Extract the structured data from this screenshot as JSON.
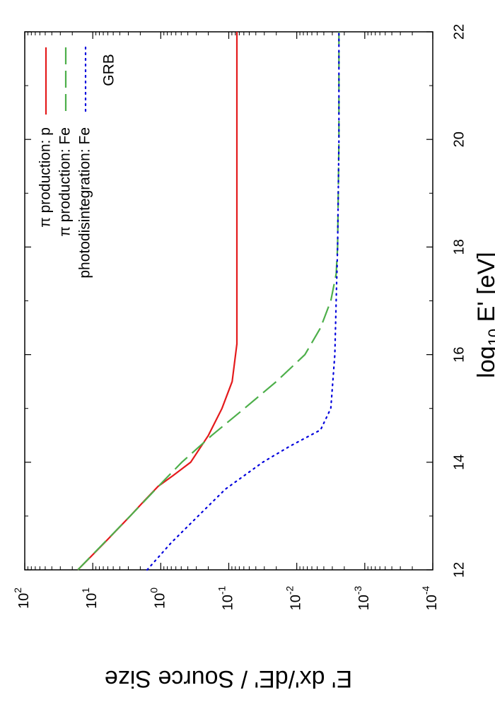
{
  "chart_data": {
    "type": "line",
    "title": "GRB",
    "xlabel_main": "log",
    "xlabel_sub": "10",
    "xlabel_rest": " E' [eV]",
    "ylabel": "E' dx'/dE' / Source Size",
    "xlim": [
      12,
      22
    ],
    "ylim_exponent": [
      -4,
      2
    ],
    "y_log_scale": true,
    "orientation": "rotated 90° clockwise",
    "x_ticks": [
      "12",
      "14",
      "16",
      "18",
      "20",
      "22"
    ],
    "y_ticks": [
      {
        "base": "10",
        "exp": "2",
        "value": 2
      },
      {
        "base": "10",
        "exp": "1",
        "value": 1
      },
      {
        "base": "10",
        "exp": "0",
        "value": 0
      },
      {
        "base": "10",
        "exp": "-1",
        "value": -1
      },
      {
        "base": "10",
        "exp": "-2",
        "value": -2
      },
      {
        "base": "10",
        "exp": "-3",
        "value": -3
      },
      {
        "base": "10",
        "exp": "-4",
        "value": -4
      }
    ],
    "legend_position": "top-right",
    "series": [
      {
        "name": "π production: p",
        "color": "#e41a1c",
        "style": "solid",
        "x": [
          12.0,
          12.5,
          13.0,
          13.3,
          13.55,
          13.75,
          14.0,
          14.5,
          15.0,
          15.5,
          16.0,
          16.2,
          18.0,
          20.0,
          22.0
        ],
        "y": [
          1.22,
          0.83,
          0.45,
          0.23,
          0.04,
          -0.18,
          -0.44,
          -0.7,
          -0.9,
          -1.05,
          -1.1,
          -1.12,
          -1.12,
          -1.12,
          -1.12
        ]
      },
      {
        "name": "π production: Fe",
        "color": "#4daf4a",
        "style": "dashed",
        "x": [
          12.0,
          13.0,
          13.65,
          14.0,
          14.5,
          15.0,
          15.5,
          16.0,
          16.5,
          17.0,
          17.5,
          18.0,
          20.0,
          22.0
        ],
        "y": [
          1.22,
          0.45,
          -0.04,
          -0.31,
          -0.75,
          -1.23,
          -1.7,
          -2.12,
          -2.35,
          -2.5,
          -2.58,
          -2.6,
          -2.62,
          -2.62
        ]
      },
      {
        "name": "photodisintegration: Fe",
        "color": "#0000dd",
        "style": "dotted",
        "x": [
          12.0,
          12.5,
          13.0,
          13.5,
          14.0,
          14.3,
          14.6,
          15.0,
          16.0,
          17.0,
          18.0,
          20.0,
          22.0
        ],
        "y": [
          0.2,
          -0.15,
          -0.55,
          -0.95,
          -1.5,
          -1.9,
          -2.35,
          -2.5,
          -2.56,
          -2.58,
          -2.6,
          -2.62,
          -2.62
        ]
      }
    ]
  }
}
